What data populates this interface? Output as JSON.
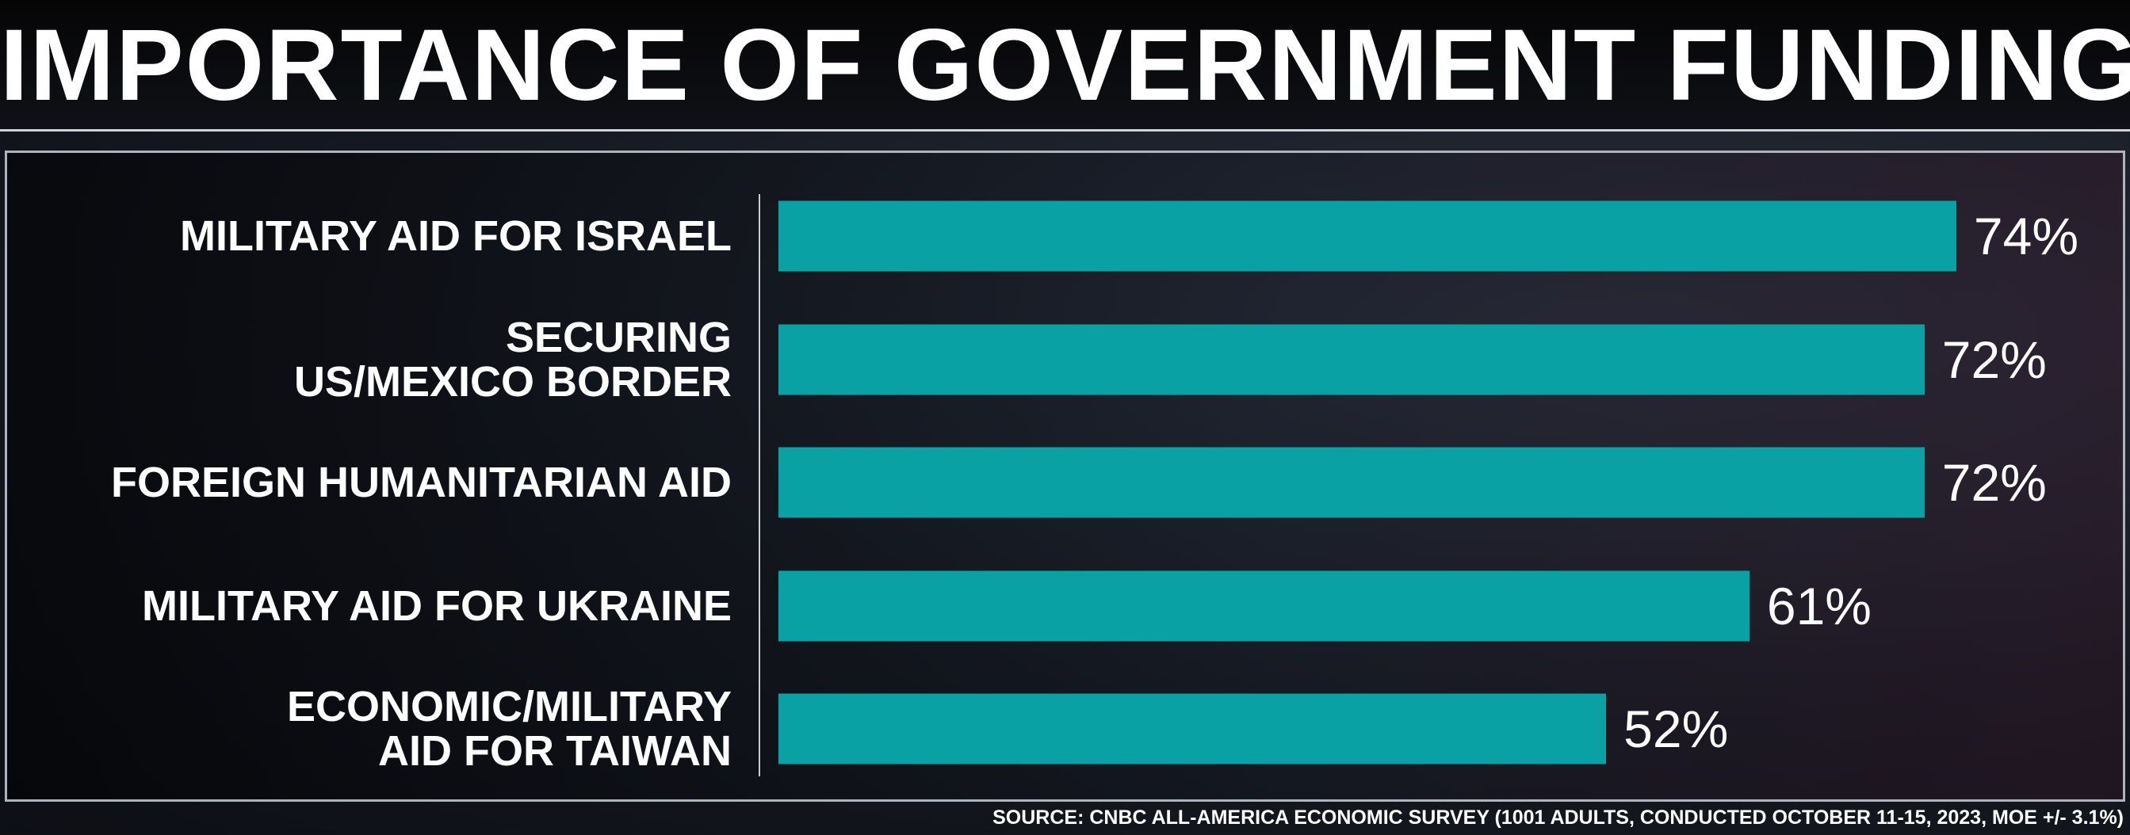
{
  "chart_data": {
    "type": "bar",
    "orientation": "horizontal",
    "title": "IMPORTANCE OF GOVERNMENT FUNDING",
    "categories": [
      "MILITARY AID FOR ISRAEL",
      "SECURING\nUS/MEXICO BORDER",
      "FOREIGN HUMANITARIAN AID",
      "MILITARY AID FOR UKRAINE",
      "ECONOMIC/MILITARY\nAID FOR TAIWAN"
    ],
    "values": [
      74,
      72,
      72,
      61,
      52
    ],
    "value_labels": [
      "74%",
      "72%",
      "72%",
      "61%",
      "52%"
    ],
    "color": "#0aa1a4",
    "source": "SOURCE: CNBC ALL-AMERICA ECONOMIC SURVEY (1001 ADULTS, CONDUCTED OCTOBER 11-15, 2023, MOE +/- 3.1%)"
  }
}
